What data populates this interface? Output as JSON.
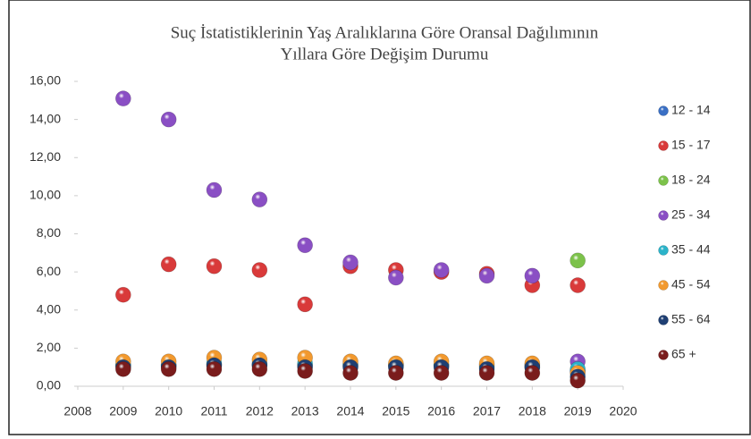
{
  "chart_data": {
    "type": "scatter",
    "title": [
      "Suç İstatistiklerinin Yaş Aralıklarına Göre Oransal Dağılımının",
      "Yıllara Göre Değişim Durumu"
    ],
    "x": [
      2009,
      2010,
      2011,
      2012,
      2013,
      2014,
      2015,
      2016,
      2017,
      2018,
      2019
    ],
    "xlim": [
      2008,
      2020
    ],
    "xticks": [
      2008,
      2009,
      2010,
      2011,
      2012,
      2013,
      2014,
      2015,
      2016,
      2017,
      2018,
      2019,
      2020
    ],
    "ylim": [
      0,
      16
    ],
    "yticks": [
      {
        "value": 0,
        "label": "0,00"
      },
      {
        "value": 2,
        "label": "2,00"
      },
      {
        "value": 4,
        "label": "4,00"
      },
      {
        "value": 6,
        "label": "6,00"
      },
      {
        "value": 8,
        "label": "8,00"
      },
      {
        "value": 10,
        "label": "10,00"
      },
      {
        "value": 12,
        "label": "12,00"
      },
      {
        "value": 14,
        "label": "14,00"
      },
      {
        "value": 16,
        "label": "16,00"
      }
    ],
    "legend": "right",
    "series": [
      {
        "name": "12 - 14",
        "color": "#3a6fc4",
        "values": [
          1.1,
          1.1,
          1.1,
          1.1,
          1.1,
          1.1,
          1.1,
          1.1,
          1.1,
          1.1,
          0.8
        ]
      },
      {
        "name": "15 - 17",
        "color": "#d93a3a",
        "values": [
          4.8,
          6.4,
          6.3,
          6.1,
          4.3,
          6.3,
          6.1,
          6.0,
          5.9,
          5.3,
          5.3
        ]
      },
      {
        "name": "18 - 24",
        "color": "#7cc24a",
        "values": [
          null,
          null,
          null,
          null,
          null,
          null,
          null,
          null,
          null,
          null,
          6.6
        ]
      },
      {
        "name": "25 - 34",
        "color": "#8a4fc4",
        "values": [
          15.1,
          14.0,
          10.3,
          9.8,
          7.4,
          6.5,
          5.7,
          6.1,
          5.8,
          5.8,
          1.3
        ]
      },
      {
        "name": "35 - 44",
        "color": "#2bb3c9",
        "values": [
          1.1,
          1.1,
          1.2,
          1.2,
          1.2,
          1.1,
          1.1,
          1.1,
          1.0,
          1.0,
          0.9
        ]
      },
      {
        "name": "45 - 54",
        "color": "#f2992e",
        "values": [
          1.3,
          1.3,
          1.5,
          1.4,
          1.5,
          1.3,
          1.2,
          1.3,
          1.2,
          1.2,
          0.7
        ]
      },
      {
        "name": "55 - 64",
        "color": "#1f3f73",
        "values": [
          1.0,
          1.0,
          1.1,
          1.1,
          1.0,
          1.0,
          1.0,
          1.0,
          0.9,
          1.0,
          0.5
        ]
      },
      {
        "name": "65 +",
        "color": "#7a1c1c",
        "values": [
          0.9,
          0.9,
          0.9,
          0.9,
          0.8,
          0.7,
          0.7,
          0.7,
          0.7,
          0.7,
          0.3
        ]
      }
    ]
  }
}
